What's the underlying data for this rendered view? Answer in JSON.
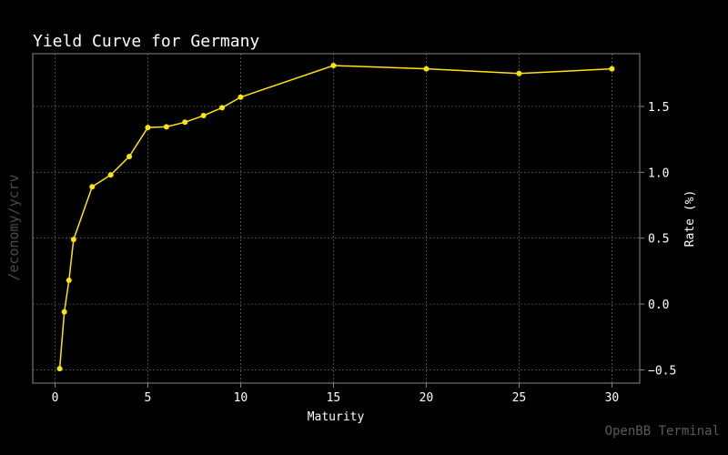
{
  "chart_data": {
    "type": "line",
    "title": "Yield Curve for Germany",
    "xlabel": "Maturity",
    "ylabel": "Rate (%)",
    "xlim": [
      -1.2,
      31.5
    ],
    "ylim": [
      -0.6,
      1.9
    ],
    "xticks": [
      0,
      5,
      10,
      15,
      20,
      25,
      30
    ],
    "xtick_labels": [
      "0",
      "5",
      "10",
      "15",
      "20",
      "25",
      "30"
    ],
    "yticks": [
      -0.5,
      0.0,
      0.5,
      1.0,
      1.5
    ],
    "ytick_labels": [
      "−0.5",
      "0.0",
      "0.5",
      "1.0",
      "1.5"
    ],
    "grid": true,
    "series": [
      {
        "color": "#ffe600",
        "x": [
          0.25,
          0.5,
          0.75,
          1,
          2,
          3,
          4,
          5,
          6,
          7,
          8,
          9,
          10,
          15,
          20,
          25,
          30
        ],
        "y": [
          -0.49,
          -0.06,
          0.18,
          0.49,
          0.89,
          0.98,
          1.12,
          1.34,
          1.345,
          1.38,
          1.43,
          1.49,
          1.57,
          1.81,
          1.785,
          1.75,
          1.785
        ]
      }
    ]
  },
  "side_label": "/economy/ycrv",
  "watermark": "OpenBB Terminal",
  "colors": {
    "background": "#000000",
    "line": "#ffe600",
    "grid": "#7a7a7a",
    "axes": "#888888"
  }
}
